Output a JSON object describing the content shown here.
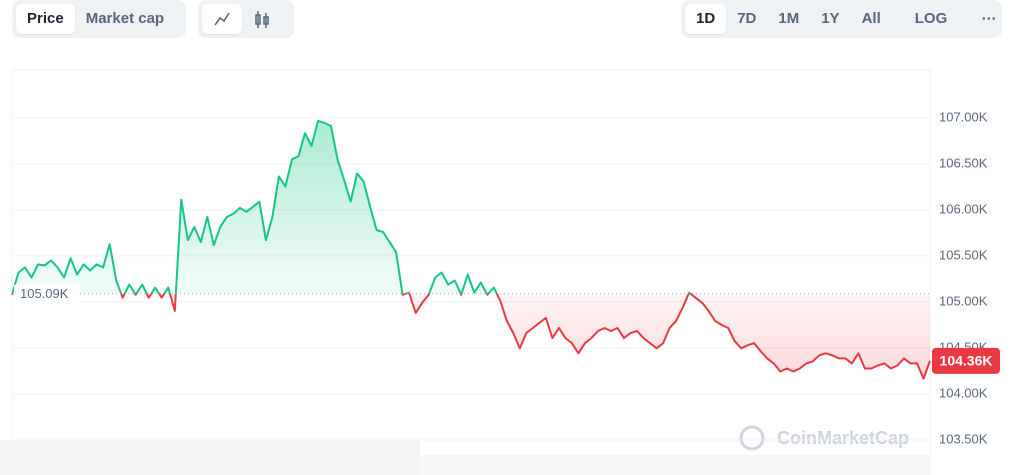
{
  "controls": {
    "metric_tabs": [
      "Price",
      "Market cap"
    ],
    "ranges": [
      "1D",
      "7D",
      "1M",
      "1Y",
      "All",
      "LOG"
    ],
    "more": "⋯"
  },
  "watermark": "CoinMarketCap",
  "chart_data": {
    "type": "line",
    "values": [
      105079,
      105320,
      105375,
      105266,
      105408,
      105397,
      105452,
      105375,
      105266,
      105474,
      105298,
      105408,
      105342,
      105408,
      105375,
      105628,
      105233,
      105046,
      105189,
      105079,
      105189,
      105046,
      105156,
      105046,
      105156,
      104903,
      106111,
      105672,
      105815,
      105650,
      105924,
      105617,
      105815,
      105924,
      105957,
      106023,
      105979,
      106034,
      106089,
      105672,
      105924,
      106363,
      106254,
      106550,
      106583,
      106835,
      106693,
      106967,
      106945,
      106912,
      106550,
      106330,
      106089,
      106396,
      106309,
      106034,
      105782,
      105760,
      105650,
      105540,
      105079,
      105101,
      104881,
      104991,
      105079,
      105266,
      105320,
      105189,
      105233,
      105079,
      105298,
      105101,
      105211,
      105079,
      105156,
      105013,
      104794,
      104662,
      104497,
      104662,
      104717,
      104772,
      104827,
      104607,
      104717,
      104607,
      104552,
      104442,
      104552,
      104607,
      104684,
      104717,
      104684,
      104717,
      104607,
      104662,
      104684,
      104607,
      104552,
      104497,
      104552,
      104717,
      104794,
      104936,
      105101,
      105046,
      104991,
      104903,
      104794,
      104750,
      104717,
      104574,
      104497,
      104530,
      104552,
      104464,
      104387,
      104332,
      104244,
      104277,
      104244,
      104277,
      104332,
      104354,
      104420,
      104442,
      104420,
      104387,
      104387,
      104332,
      104442,
      104277,
      104277,
      104310,
      104332,
      104277,
      104310,
      104387,
      104332,
      104332,
      104167,
      104360
    ],
    "up_color": "#16c784",
    "down_color": "#ea3943",
    "baseline": {
      "value": 105090,
      "label": "105.09K"
    },
    "current_price": {
      "value": 104360,
      "label": "104.36K"
    },
    "ylim": [
      103120,
      107520
    ],
    "yticks": [
      {
        "value": 103500,
        "label": "103.50K"
      },
      {
        "value": 104000,
        "label": "104.00K"
      },
      {
        "value": 104500,
        "label": "104.50K"
      },
      {
        "value": 105000,
        "label": "105.00K"
      },
      {
        "value": 105500,
        "label": "105.50K"
      },
      {
        "value": 106000,
        "label": "106.00K"
      },
      {
        "value": 106500,
        "label": "106.50K"
      },
      {
        "value": 107000,
        "label": "107.00K"
      }
    ],
    "grid": true
  }
}
